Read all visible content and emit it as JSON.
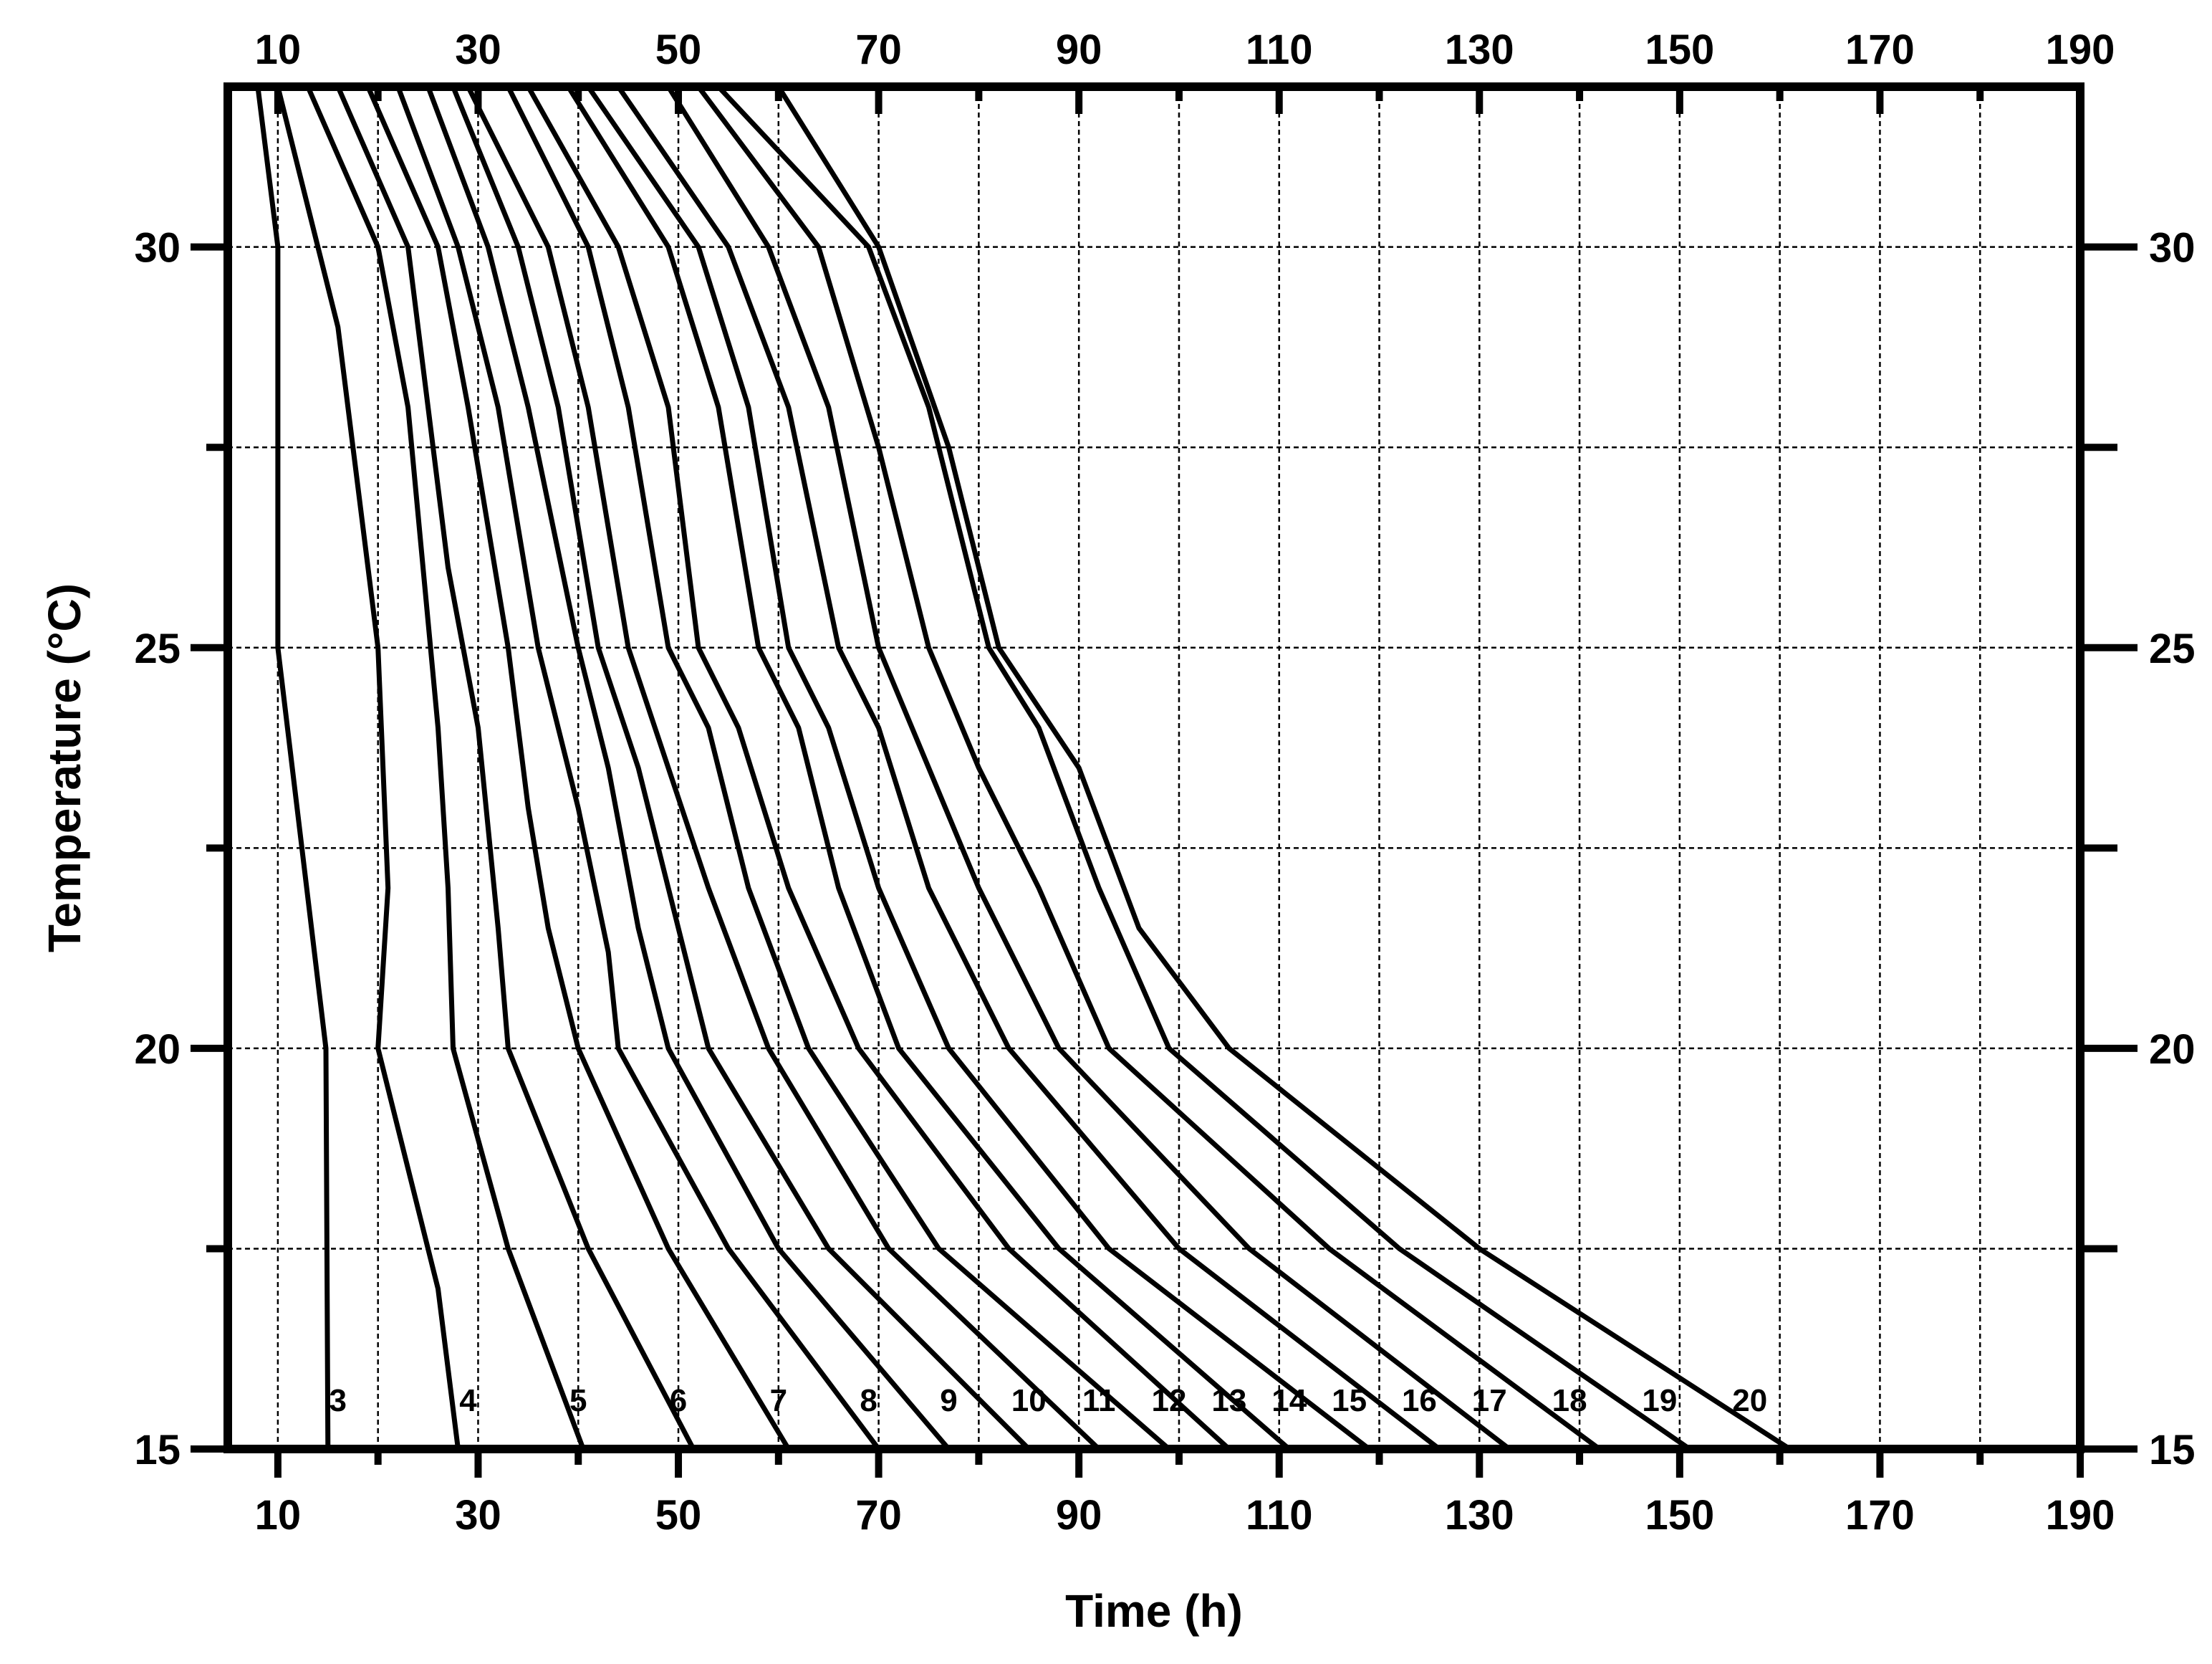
{
  "chart_data": {
    "type": "line",
    "xlabel": "Time (h)",
    "ylabel": "Temperature (°C)",
    "xlim": [
      5,
      190
    ],
    "ylim": [
      15,
      32
    ],
    "x_ticks": [
      10,
      30,
      50,
      70,
      90,
      110,
      130,
      150,
      170,
      190
    ],
    "x_minor_ticks": [
      20,
      40,
      60,
      80,
      100,
      120,
      140,
      160,
      180
    ],
    "y_ticks": [
      15,
      20,
      25,
      30
    ],
    "y_minor_ticks": [
      17.5,
      22.5,
      27.5
    ],
    "grid": true,
    "top_axis_labels": true,
    "right_axis_labels": true,
    "series": [
      {
        "name": "3",
        "label_at": [
          16,
          15.6
        ],
        "points": [
          [
            8,
            32
          ],
          [
            10,
            30
          ],
          [
            10,
            25
          ],
          [
            14.8,
            20
          ],
          [
            15,
            15
          ]
        ]
      },
      {
        "name": "4",
        "label_at": [
          29,
          15.6
        ],
        "points": [
          [
            10,
            32
          ],
          [
            14,
            30
          ],
          [
            16,
            29
          ],
          [
            20,
            25
          ],
          [
            21,
            22
          ],
          [
            20,
            20
          ],
          [
            26,
            17
          ],
          [
            28,
            15
          ]
        ]
      },
      {
        "name": "5",
        "label_at": [
          40,
          15.6
        ],
        "points": [
          [
            13,
            32
          ],
          [
            20,
            30
          ],
          [
            23,
            28
          ],
          [
            26,
            24
          ],
          [
            27,
            22
          ],
          [
            27.5,
            20
          ],
          [
            33,
            17.5
          ],
          [
            40.5,
            15
          ]
        ]
      },
      {
        "name": "6",
        "label_at": [
          50,
          15.6
        ],
        "points": [
          [
            16,
            32
          ],
          [
            23,
            30
          ],
          [
            25,
            28
          ],
          [
            27,
            26
          ],
          [
            30,
            24
          ],
          [
            32,
            21.5
          ],
          [
            33,
            20
          ],
          [
            41,
            17.5
          ],
          [
            51.5,
            15
          ]
        ]
      },
      {
        "name": "7",
        "label_at": [
          60,
          15.6
        ],
        "points": [
          [
            19,
            32
          ],
          [
            26,
            30
          ],
          [
            29,
            28
          ],
          [
            33,
            25
          ],
          [
            35,
            23
          ],
          [
            37,
            21.5
          ],
          [
            40,
            20
          ],
          [
            49,
            17.5
          ],
          [
            61,
            15
          ]
        ]
      },
      {
        "name": "8",
        "label_at": [
          69,
          15.6
        ],
        "points": [
          [
            22,
            32
          ],
          [
            28,
            30
          ],
          [
            32,
            28
          ],
          [
            36,
            25
          ],
          [
            40,
            23
          ],
          [
            43,
            21.2
          ],
          [
            44,
            20
          ],
          [
            55,
            17.5
          ],
          [
            70,
            15
          ]
        ]
      },
      {
        "name": "9",
        "label_at": [
          77,
          15.6
        ],
        "points": [
          [
            25,
            32
          ],
          [
            31,
            30
          ],
          [
            35,
            28
          ],
          [
            40,
            25
          ],
          [
            43,
            23.5
          ],
          [
            46,
            21.5
          ],
          [
            49,
            20
          ],
          [
            60,
            17.5
          ],
          [
            77,
            15
          ]
        ]
      },
      {
        "name": "10",
        "label_at": [
          85,
          15.6
        ],
        "points": [
          [
            27.5,
            32
          ],
          [
            34,
            30
          ],
          [
            38,
            28
          ],
          [
            42,
            25
          ],
          [
            46,
            23.5
          ],
          [
            49,
            22
          ],
          [
            53,
            20
          ],
          [
            65,
            17.5
          ],
          [
            85,
            15
          ]
        ]
      },
      {
        "name": "11",
        "label_at": [
          92,
          15.6
        ],
        "points": [
          [
            29,
            32
          ],
          [
            37,
            30
          ],
          [
            41,
            28
          ],
          [
            45,
            25
          ],
          [
            49,
            23.5
          ],
          [
            53,
            22
          ],
          [
            59,
            20
          ],
          [
            71,
            17.5
          ],
          [
            92,
            15
          ]
        ]
      },
      {
        "name": "12",
        "label_at": [
          99,
          15.6
        ],
        "points": [
          [
            33,
            32
          ],
          [
            41,
            30
          ],
          [
            45,
            28
          ],
          [
            49,
            25
          ],
          [
            53,
            24
          ],
          [
            57,
            22
          ],
          [
            63,
            20
          ],
          [
            76,
            17.5
          ],
          [
            99,
            15
          ]
        ]
      },
      {
        "name": "13",
        "label_at": [
          105,
          15.6
        ],
        "points": [
          [
            35,
            32
          ],
          [
            44,
            30
          ],
          [
            49,
            28
          ],
          [
            52,
            25
          ],
          [
            56,
            24
          ],
          [
            61,
            22
          ],
          [
            68,
            20
          ],
          [
            83,
            17.5
          ],
          [
            105,
            15
          ]
        ]
      },
      {
        "name": "14",
        "label_at": [
          111,
          15.6
        ],
        "points": [
          [
            39,
            32
          ],
          [
            49,
            30
          ],
          [
            54,
            28
          ],
          [
            58,
            25
          ],
          [
            62,
            24
          ],
          [
            66,
            22
          ],
          [
            72,
            20
          ],
          [
            88,
            17.5
          ],
          [
            111,
            15
          ]
        ]
      },
      {
        "name": "15",
        "label_at": [
          117,
          15.6
        ],
        "points": [
          [
            41,
            32
          ],
          [
            52,
            30
          ],
          [
            57,
            28
          ],
          [
            61,
            25
          ],
          [
            65,
            24
          ],
          [
            70,
            22
          ],
          [
            77,
            20
          ],
          [
            93,
            17.5
          ],
          [
            119,
            15
          ]
        ]
      },
      {
        "name": "16",
        "label_at": [
          124,
          15.6
        ],
        "points": [
          [
            44,
            32
          ],
          [
            55,
            30
          ],
          [
            61,
            28
          ],
          [
            66,
            25
          ],
          [
            70,
            24
          ],
          [
            75,
            22
          ],
          [
            83,
            20
          ],
          [
            100,
            17.5
          ],
          [
            126,
            15
          ]
        ]
      },
      {
        "name": "17",
        "label_at": [
          131,
          15.6
        ],
        "points": [
          [
            49,
            32
          ],
          [
            59,
            30
          ],
          [
            65,
            28
          ],
          [
            70,
            25
          ],
          [
            75,
            23.5
          ],
          [
            80,
            22
          ],
          [
            88,
            20
          ],
          [
            107,
            17.5
          ],
          [
            133,
            15
          ]
        ]
      },
      {
        "name": "18",
        "label_at": [
          139,
          15.6
        ],
        "points": [
          [
            52,
            32
          ],
          [
            64,
            30
          ],
          [
            70,
            27.5
          ],
          [
            75,
            25
          ],
          [
            80,
            23.5
          ],
          [
            86,
            22
          ],
          [
            93,
            20
          ],
          [
            115,
            17.5
          ],
          [
            142,
            15
          ]
        ]
      },
      {
        "name": "19",
        "label_at": [
          148,
          15.6
        ],
        "points": [
          [
            54,
            32
          ],
          [
            69,
            30
          ],
          [
            75,
            28
          ],
          [
            81,
            25
          ],
          [
            86,
            24
          ],
          [
            92,
            22
          ],
          [
            99,
            20
          ],
          [
            122,
            17.5
          ],
          [
            151,
            15
          ]
        ]
      },
      {
        "name": "20",
        "label_at": [
          157,
          15.6
        ],
        "points": [
          [
            60,
            32
          ],
          [
            70,
            30
          ],
          [
            77,
            27.5
          ],
          [
            82,
            25
          ],
          [
            90,
            23.5
          ],
          [
            96,
            21.5
          ],
          [
            105,
            20
          ],
          [
            130,
            17.5
          ],
          [
            161,
            15
          ]
        ]
      }
    ]
  }
}
